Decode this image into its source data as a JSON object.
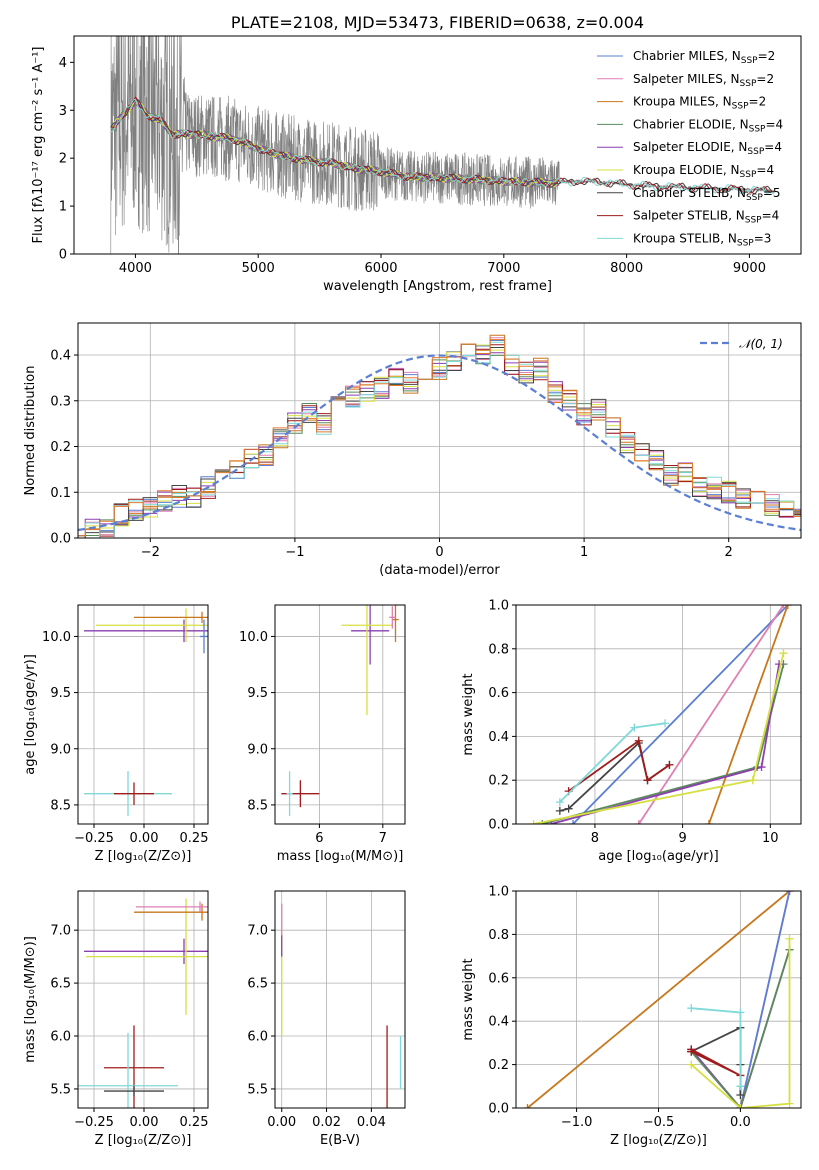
{
  "chart_data": [
    {
      "id": "spectrum",
      "type": "line",
      "title": "PLATE=2108, MJD=53473, FIBERID=0638, z=0.004",
      "xlabel": "wavelength [Angstrom, rest frame]",
      "ylabel": "Flux [fλ10⁻¹⁷ erg cm⁻² s⁻¹ A⁻¹]",
      "xlim": [
        3500,
        9420
      ],
      "ylim": [
        0,
        4.55
      ],
      "xticks": [
        4000,
        5000,
        6000,
        7000,
        8000,
        9000
      ],
      "yticks": [
        0,
        1,
        2,
        3,
        4
      ],
      "legend_position": "top-right",
      "legend": [
        {
          "label": "Chabrier MILES, N_SSP=2",
          "color": "#5b7fd2"
        },
        {
          "label": "Salpeter MILES, N_SSP=2",
          "color": "#e07fb3"
        },
        {
          "label": "Kroupa MILES, N_SSP=2",
          "color": "#c8771c"
        },
        {
          "label": "Chabrier ELODIE, N_SSP=4",
          "color": "#5a8a5a"
        },
        {
          "label": "Salpeter ELODIE, N_SSP=4",
          "color": "#8b3fb0"
        },
        {
          "label": "Kroupa ELODIE, N_SSP=4",
          "color": "#d6e040"
        },
        {
          "label": "Chabrier STELIB, N_SSP=5",
          "color": "#444444"
        },
        {
          "label": "Salpeter STELIB, N_SSP=4",
          "color": "#a01c1c"
        },
        {
          "label": "Kroupa STELIB, N_SSP=3",
          "color": "#7fd9d9"
        }
      ],
      "data_color": "#808080",
      "model_continuum": [
        [
          3800,
          2.6
        ],
        [
          3900,
          2.9
        ],
        [
          4000,
          3.2
        ],
        [
          4100,
          2.9
        ],
        [
          4200,
          2.8
        ],
        [
          4300,
          2.5
        ],
        [
          4500,
          2.5
        ],
        [
          4800,
          2.4
        ],
        [
          5000,
          2.2
        ],
        [
          5200,
          2.05
        ],
        [
          5400,
          1.95
        ],
        [
          5600,
          1.9
        ],
        [
          5800,
          1.78
        ],
        [
          6000,
          1.72
        ],
        [
          6200,
          1.62
        ],
        [
          6400,
          1.6
        ],
        [
          6600,
          1.58
        ],
        [
          6800,
          1.55
        ],
        [
          7000,
          1.52
        ],
        [
          7200,
          1.5
        ],
        [
          7400,
          1.48
        ],
        [
          7600,
          1.52
        ],
        [
          7800,
          1.5
        ],
        [
          8000,
          1.45
        ],
        [
          8200,
          1.42
        ],
        [
          8400,
          1.4
        ],
        [
          8600,
          1.38
        ],
        [
          8800,
          1.36
        ],
        [
          9000,
          1.34
        ],
        [
          9200,
          1.32
        ]
      ]
    },
    {
      "id": "residuals",
      "type": "step",
      "xlabel": "(data-model)/error",
      "ylabel": "Normed distribution",
      "xlim": [
        -2.5,
        2.5
      ],
      "ylim": [
        0,
        0.47
      ],
      "xticks": [
        -2,
        -1,
        0,
        1,
        2
      ],
      "yticks": [
        0.0,
        0.1,
        0.2,
        0.3,
        0.4
      ],
      "legend_position": "top-right",
      "legend": [
        {
          "label": "𝒩(0, 1)",
          "color": "#5b7fd2",
          "style": "dashed"
        }
      ],
      "hist_envelope": [
        0.03,
        0.02,
        0.02,
        0.05,
        0.06,
        0.07,
        0.08,
        0.09,
        0.09,
        0.11,
        0.13,
        0.15,
        0.17,
        0.18,
        0.22,
        0.25,
        0.27,
        0.25,
        0.29,
        0.31,
        0.32,
        0.33,
        0.35,
        0.34,
        0.36,
        0.37,
        0.39,
        0.41,
        0.4,
        0.42,
        0.38,
        0.36,
        0.37,
        0.32,
        0.3,
        0.27,
        0.28,
        0.24,
        0.21,
        0.19,
        0.17,
        0.14,
        0.14,
        0.11,
        0.11,
        0.1,
        0.09,
        0.08,
        0.07,
        0.06,
        0.05,
        0.04,
        0.04
      ]
    },
    {
      "id": "age_vs_Z",
      "type": "errorbar",
      "xlabel": "Z [log₁₀(Z/Z⊙)]",
      "ylabel": "age  [log₁₀(age/yr)]",
      "xlim": [
        -0.33,
        0.32
      ],
      "ylim": [
        8.33,
        10.28
      ],
      "xticks": [
        -0.25,
        0.0,
        0.25
      ],
      "yticks": [
        8.5,
        9.0,
        9.5,
        10.0
      ],
      "points": [
        {
          "x": -0.08,
          "y": 8.6,
          "xerr": 0.22,
          "yerr": 0.2,
          "color": "#7fd9d9"
        },
        {
          "x": -0.05,
          "y": 8.6,
          "xerr": 0.1,
          "yerr": 0.1,
          "color": "#a01c1c"
        },
        {
          "x": 0.2,
          "y": 10.05,
          "xerr": 0.5,
          "yerr": 0.1,
          "color": "#8b3fb0"
        },
        {
          "x": 0.21,
          "y": 10.1,
          "xerr": 0.45,
          "yerr": 0.15,
          "color": "#d6e040"
        },
        {
          "x": 0.29,
          "y": 10.17,
          "xerr": 0.34,
          "yerr": 0.05,
          "color": "#c8771c"
        },
        {
          "x": 0.3,
          "y": 10.0,
          "xerr": 0.02,
          "yerr": 0.15,
          "color": "#5b7fd2"
        }
      ]
    },
    {
      "id": "age_vs_mass",
      "type": "errorbar",
      "xlabel": "mass [log₁₀(M/M⊙)]",
      "ylabel": "",
      "xlim": [
        5.3,
        7.35
      ],
      "ylim": [
        8.33,
        10.28
      ],
      "xticks": [
        6,
        7
      ],
      "yticks": [
        8.5,
        9.0,
        9.5,
        10.0
      ],
      "points": [
        {
          "x": 5.7,
          "y": 8.6,
          "xerr": 0.3,
          "yerr": 0.12,
          "color": "#a01c1c"
        },
        {
          "x": 5.53,
          "y": 8.6,
          "xerr": 0.05,
          "yerr": 0.2,
          "color": "#7fd9d9"
        },
        {
          "x": 6.8,
          "y": 10.05,
          "xerr": 0.3,
          "yerr": 0.3,
          "color": "#8b3fb0"
        },
        {
          "x": 6.75,
          "y": 10.1,
          "xerr": 0.4,
          "yerr": 0.8,
          "color": "#d6e040"
        },
        {
          "x": 7.2,
          "y": 10.15,
          "xerr": 0.05,
          "yerr": 0.2,
          "color": "#c8771c"
        },
        {
          "x": 7.15,
          "y": 10.17,
          "xerr": 0.05,
          "yerr": 0.1,
          "color": "#e07fb3"
        }
      ]
    },
    {
      "id": "weight_vs_age",
      "type": "line",
      "xlabel": "age  [log₁₀(age/yr)]",
      "ylabel": "mass weight",
      "xlim": [
        7.1,
        10.35
      ],
      "ylim": [
        0,
        1
      ],
      "xticks": [
        8,
        9,
        10
      ],
      "yticks": [
        0.0,
        0.2,
        0.4,
        0.6,
        0.8,
        1.0
      ],
      "series": [
        {
          "color": "#5b7fd2",
          "x": [
            7.75,
            10.2
          ],
          "y": [
            0.0,
            1.0
          ]
        },
        {
          "color": "#e07fb3",
          "x": [
            8.5,
            10.15
          ],
          "y": [
            0.0,
            1.0
          ]
        },
        {
          "color": "#c8771c",
          "x": [
            9.3,
            10.2
          ],
          "y": [
            0.0,
            1.0
          ]
        },
        {
          "color": "#5a8a5a",
          "x": [
            7.4,
            9.85,
            10.15
          ],
          "y": [
            0.0,
            0.26,
            0.73
          ]
        },
        {
          "color": "#8b3fb0",
          "x": [
            7.5,
            9.9,
            10.1
          ],
          "y": [
            0.0,
            0.26,
            0.73
          ]
        },
        {
          "color": "#d6e040",
          "x": [
            7.3,
            9.8,
            10.15
          ],
          "y": [
            0.0,
            0.2,
            0.78
          ]
        },
        {
          "color": "#444444",
          "x": [
            7.6,
            7.7,
            8.5,
            8.6,
            8.85
          ],
          "y": [
            0.06,
            0.07,
            0.37,
            0.2,
            0.27
          ]
        },
        {
          "color": "#a01c1c",
          "x": [
            7.7,
            8.5,
            8.6,
            8.85
          ],
          "y": [
            0.15,
            0.38,
            0.2,
            0.27
          ]
        },
        {
          "color": "#7fd9d9",
          "x": [
            7.6,
            8.45,
            8.8
          ],
          "y": [
            0.1,
            0.44,
            0.46
          ]
        }
      ]
    },
    {
      "id": "mass_vs_Z",
      "type": "errorbar",
      "xlabel": "Z [log₁₀(Z/Z⊙)]",
      "ylabel": "mass [log₁₀(M/M⊙)]",
      "xlim": [
        -0.33,
        0.32
      ],
      "ylim": [
        5.32,
        7.37
      ],
      "xticks": [
        -0.25,
        0.0,
        0.25
      ],
      "yticks": [
        5.5,
        6.0,
        6.5,
        7.0
      ],
      "points": [
        {
          "x": -0.05,
          "y": 5.7,
          "xerr": 0.15,
          "yerr": 0.4,
          "color": "#a01c1c"
        },
        {
          "x": -0.08,
          "y": 5.53,
          "xerr": 0.25,
          "yerr": 0.5,
          "color": "#7fd9d9"
        },
        {
          "x": -0.05,
          "y": 5.48,
          "xerr": 0.15,
          "yerr": 0.05,
          "color": "#444444"
        },
        {
          "x": 0.2,
          "y": 6.8,
          "xerr": 0.5,
          "yerr": 0.12,
          "color": "#8b3fb0"
        },
        {
          "x": 0.21,
          "y": 6.75,
          "xerr": 0.5,
          "yerr": 0.55,
          "color": "#d6e040"
        },
        {
          "x": 0.29,
          "y": 7.17,
          "xerr": 0.34,
          "yerr": 0.08,
          "color": "#c8771c"
        },
        {
          "x": 0.28,
          "y": 7.22,
          "xerr": 0.32,
          "yerr": 0.05,
          "color": "#e07fb3"
        }
      ]
    },
    {
      "id": "mass_vs_EBV",
      "type": "errorbar",
      "xlabel": "E(B-V)",
      "ylabel": "",
      "xlim": [
        -0.003,
        0.055
      ],
      "ylim": [
        5.32,
        7.37
      ],
      "xticks": [
        0.0,
        0.02,
        0.04
      ],
      "yticks": [
        5.5,
        6.0,
        6.5,
        7.0
      ],
      "points": [
        {
          "x": 0.047,
          "y": 5.7,
          "xerr": 0.0,
          "yerr": 0.4,
          "color": "#a01c1c"
        },
        {
          "x": 0.053,
          "y": 5.75,
          "xerr": 0.0,
          "yerr": 0.25,
          "color": "#7fd9d9"
        },
        {
          "x": 0.0,
          "y": 6.5,
          "xerr": 0.0,
          "yerr": 0.5,
          "color": "#d6e040"
        },
        {
          "x": 0.0,
          "y": 7.1,
          "xerr": 0.0,
          "yerr": 0.15,
          "color": "#e07fb3"
        },
        {
          "x": 0.0,
          "y": 6.85,
          "xerr": 0.0,
          "yerr": 0.1,
          "color": "#8b3fb0"
        }
      ]
    },
    {
      "id": "weight_vs_Z",
      "type": "line",
      "xlabel": "Z [log₁₀(Z/Z⊙)]",
      "ylabel": "mass weight",
      "xlim": [
        -1.37,
        0.37
      ],
      "ylim": [
        0,
        1
      ],
      "xticks": [
        -1.0,
        -0.5,
        0.0
      ],
      "yticks": [
        0.0,
        0.2,
        0.4,
        0.6,
        0.8,
        1.0
      ],
      "series": [
        {
          "color": "#c8771c",
          "x": [
            -1.3,
            0.3
          ],
          "y": [
            0.0,
            1.0
          ]
        },
        {
          "color": "#e07fb3",
          "x": [
            0.0,
            0.3
          ],
          "y": [
            0.0,
            1.0
          ]
        },
        {
          "color": "#5b7fd2",
          "x": [
            0.0,
            0.3
          ],
          "y": [
            0.0,
            1.0
          ]
        },
        {
          "color": "#8b3fb0",
          "x": [
            -0.3,
            0.0,
            0.3
          ],
          "y": [
            0.27,
            0.0,
            0.73
          ]
        },
        {
          "color": "#5a8a5a",
          "x": [
            -0.3,
            0.0,
            0.3
          ],
          "y": [
            0.26,
            0.0,
            0.73
          ]
        },
        {
          "color": "#d6e040",
          "x": [
            -0.3,
            0.0,
            0.3,
            0.3
          ],
          "y": [
            0.2,
            0.0,
            0.02,
            0.78
          ]
        },
        {
          "color": "#444444",
          "x": [
            -0.3,
            0.0,
            0.0,
            0.0
          ],
          "y": [
            0.26,
            0.37,
            0.2,
            0.06
          ]
        },
        {
          "color": "#a01c1c",
          "x": [
            -0.3,
            0.0,
            -0.3
          ],
          "y": [
            0.26,
            0.15,
            0.27
          ]
        },
        {
          "color": "#7fd9d9",
          "x": [
            -0.3,
            0.0,
            0.0
          ],
          "y": [
            0.46,
            0.44,
            0.1
          ]
        }
      ]
    }
  ]
}
